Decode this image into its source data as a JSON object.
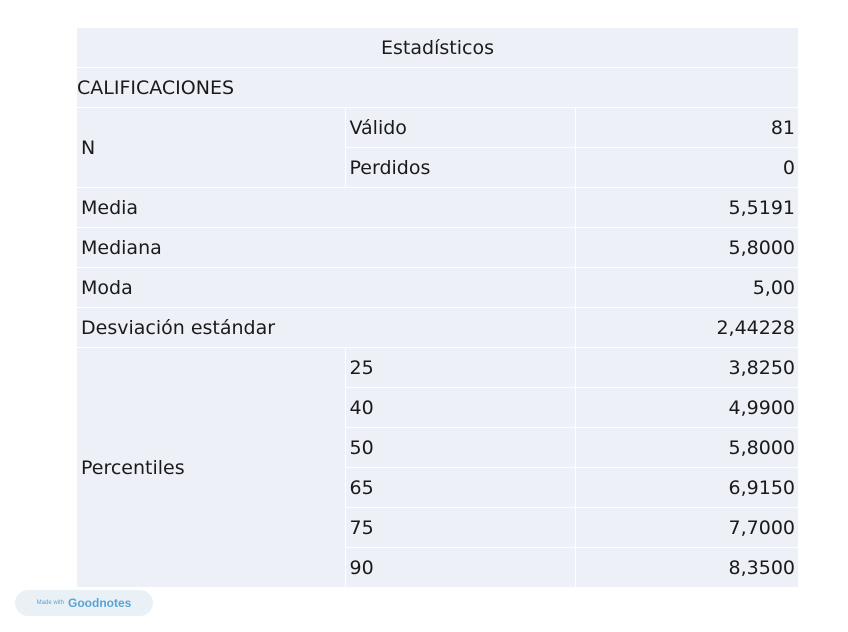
{
  "table": {
    "title": "Estadísticos",
    "variable": "CALIFICACIONES",
    "n_label": "N",
    "n_rows": [
      {
        "label": "Válido",
        "value": "81"
      },
      {
        "label": "Perdidos",
        "value": "0"
      }
    ],
    "simple_rows": [
      {
        "label": "Media",
        "value": "5,5191"
      },
      {
        "label": "Mediana",
        "value": "5,8000"
      },
      {
        "label": "Moda",
        "value": "5,00"
      },
      {
        "label": "Desviación estándar",
        "value": "2,44228"
      }
    ],
    "percentiles_label": "Percentiles",
    "percentile_rows": [
      {
        "label": "25",
        "value": "3,8250"
      },
      {
        "label": "40",
        "value": "4,9900"
      },
      {
        "label": "50",
        "value": "5,8000"
      },
      {
        "label": "65",
        "value": "6,9150"
      },
      {
        "label": "75",
        "value": "7,7000"
      },
      {
        "label": "90",
        "value": "8,3500"
      }
    ]
  },
  "badge": {
    "prefix": "Made with",
    "brand": "Goodnotes"
  }
}
